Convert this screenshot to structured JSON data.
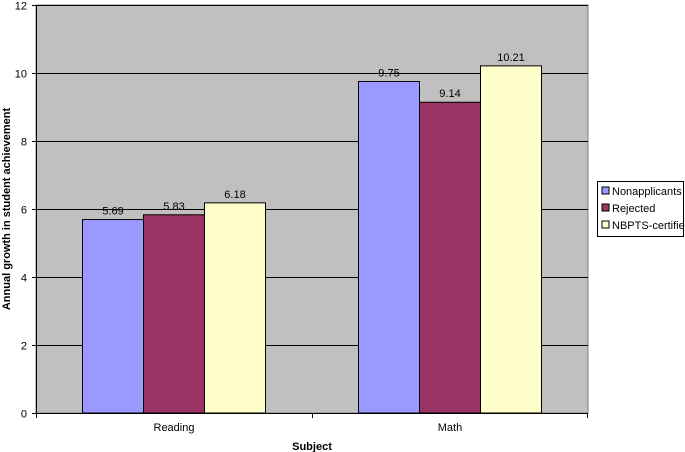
{
  "chart_data": {
    "type": "bar",
    "title": "",
    "xlabel": "Subject",
    "ylabel": "Annual growth in student achievement",
    "categories": [
      "Reading",
      "Math"
    ],
    "series": [
      {
        "name": "Nonapplicants",
        "values": [
          5.69,
          9.75
        ],
        "color": "#9999FF"
      },
      {
        "name": "Rejected",
        "values": [
          5.83,
          9.14
        ],
        "color": "#993366"
      },
      {
        "name": "NBPTS-certified",
        "values": [
          6.18,
          10.21
        ],
        "color": "#FFFFCC"
      }
    ],
    "ylim": [
      0,
      12
    ],
    "yticks": [
      0,
      2,
      4,
      6,
      8,
      10,
      12
    ],
    "grid": true,
    "legend_position": "right",
    "plot_background": "#C0C0C0",
    "data_labels": [
      [
        "5.69",
        "9.75"
      ],
      [
        "5.83",
        "9.14"
      ],
      [
        "6.18",
        "10.21"
      ]
    ]
  }
}
